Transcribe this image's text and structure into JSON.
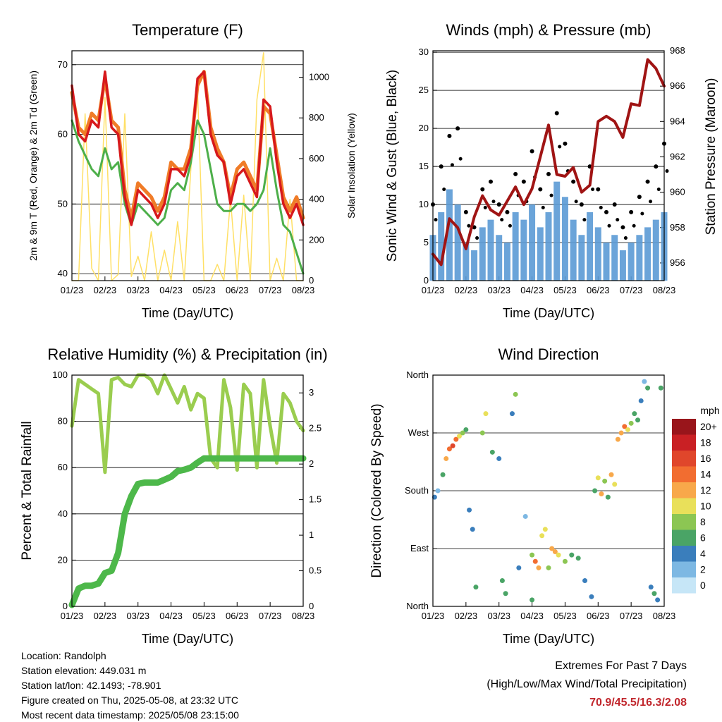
{
  "x_ticks": [
    "01/23",
    "02/23",
    "03/23",
    "04/23",
    "05/23",
    "06/23",
    "07/23",
    "08/23"
  ],
  "colors": {
    "temp2m": "#d7191c",
    "temp9m": "#f07c28",
    "dewpoint": "#4daf4a",
    "solar": "#ffe066",
    "gust": "#000000",
    "wind": "#5b9bd5",
    "pressure": "#a01414",
    "rh": "#9acd4f",
    "rain": "#4db84a"
  },
  "chart_data": [
    {
      "id": "temperature",
      "type": "line",
      "title": "Temperature (F)",
      "xlabel": "Time (Day/UTC)",
      "ylabel": "2m & 9m T (Red, Orange) & 2m Td (Green)",
      "y2label": "Solar Insolation (Yellow)",
      "ylim": [
        39,
        72
      ],
      "y2lim": [
        0,
        1130
      ],
      "yticks": [
        40,
        50,
        60,
        70
      ],
      "y2ticks": [
        0,
        200,
        400,
        600,
        800,
        1000
      ],
      "x": [
        0,
        0.2,
        0.4,
        0.6,
        0.8,
        1.0,
        1.2,
        1.4,
        1.6,
        1.8,
        2.0,
        2.2,
        2.4,
        2.6,
        2.8,
        3.0,
        3.2,
        3.4,
        3.6,
        3.8,
        4.0,
        4.2,
        4.4,
        4.6,
        4.8,
        5.0,
        5.2,
        5.4,
        5.6,
        5.8,
        6.0,
        6.2,
        6.4,
        6.6,
        6.8,
        7.0
      ],
      "series": [
        {
          "name": "2m T",
          "values": [
            67,
            60,
            59,
            62,
            61,
            69,
            61,
            60,
            51,
            47,
            52,
            51,
            50,
            48,
            50,
            55,
            55,
            54,
            57,
            68,
            69,
            60,
            57,
            56,
            50,
            54,
            55,
            53,
            51,
            65,
            64,
            56,
            50,
            48,
            50,
            47
          ]
        },
        {
          "name": "9m T",
          "values": [
            66,
            61,
            60,
            63,
            62,
            68,
            62,
            61,
            52,
            48,
            53,
            52,
            51,
            49,
            51,
            56,
            55,
            55,
            58,
            67,
            69,
            61,
            58,
            56,
            51,
            55,
            56,
            54,
            52,
            64,
            63,
            57,
            51,
            49,
            51,
            48
          ]
        },
        {
          "name": "2m Td",
          "values": [
            62,
            59,
            57,
            55,
            54,
            58,
            55,
            56,
            50,
            47,
            50,
            49,
            48,
            47,
            48,
            52,
            53,
            52,
            56,
            62,
            60,
            55,
            50,
            49,
            49,
            50,
            50,
            49,
            50,
            52,
            58,
            52,
            47,
            46,
            43,
            40
          ]
        },
        {
          "name": "Solar",
          "values": [
            0,
            0,
            820,
            60,
            0,
            900,
            0,
            30,
            820,
            20,
            120,
            0,
            240,
            0,
            150,
            0,
            290,
            0,
            550,
            940,
            0,
            0,
            80,
            0,
            400,
            0,
            420,
            0,
            890,
            1120,
            0,
            110,
            0,
            400,
            0,
            0
          ]
        }
      ]
    },
    {
      "id": "winds",
      "type": "line",
      "title": "Winds (mph) & Pressure (mb)",
      "xlabel": "Time (Day/UTC)",
      "ylabel": "Sonic Wind & Gust (Blue, Black)",
      "y2label": "Station Pressure (Maroon)",
      "ylim": [
        0,
        30.2
      ],
      "y2lim": [
        955,
        968
      ],
      "yticks": [
        0,
        5,
        10,
        15,
        20,
        25,
        30
      ],
      "y2ticks": [
        956,
        958,
        960,
        962,
        964,
        966,
        968
      ],
      "x": [
        0,
        0.25,
        0.5,
        0.75,
        1.0,
        1.25,
        1.5,
        1.75,
        2.0,
        2.25,
        2.5,
        2.75,
        3.0,
        3.25,
        3.5,
        3.75,
        4.0,
        4.25,
        4.5,
        4.75,
        5.0,
        5.25,
        5.5,
        5.75,
        6.0,
        6.25,
        6.5,
        6.75,
        7.0
      ],
      "series": [
        {
          "name": "Sonic Wind",
          "values": [
            6,
            9,
            12,
            10,
            5,
            4,
            7,
            8,
            6,
            5,
            9,
            8,
            10,
            7,
            9,
            13,
            11,
            8,
            6,
            9,
            7,
            5,
            6,
            4,
            5,
            6,
            7,
            8,
            9
          ]
        },
        {
          "name": "Gust",
          "values": [
            10,
            15,
            19,
            20,
            9,
            7,
            12,
            13,
            10,
            9,
            14,
            13,
            17,
            12,
            14,
            22,
            18,
            13,
            10,
            15,
            12,
            9,
            10,
            7,
            9,
            11,
            13,
            15,
            18
          ]
        },
        {
          "name": "Pressure",
          "values": [
            956.5,
            955.9,
            958.5,
            958.0,
            956.8,
            958.6,
            959.8,
            959.0,
            958.7,
            959.5,
            960.3,
            959.3,
            960.2,
            962.0,
            963.8,
            961.0,
            960.9,
            961.4,
            960.0,
            960.4,
            964.0,
            964.3,
            964.0,
            963.1,
            965.0,
            964.9,
            967.5,
            967.0,
            966.0
          ]
        }
      ]
    },
    {
      "id": "humidity",
      "type": "line",
      "title": "Relative Humidity (%) & Precipitation (in)",
      "xlabel": "Time (Day/UTC)",
      "ylabel": "Percent & Total Rainfall",
      "ylim": [
        0,
        100
      ],
      "y2lim": [
        0,
        3.25
      ],
      "yticks": [
        0,
        20,
        40,
        60,
        80,
        100
      ],
      "y2ticks": [
        0.0,
        0.5,
        1.0,
        1.5,
        2.0,
        2.5,
        3.0
      ],
      "x": [
        0,
        0.2,
        0.4,
        0.6,
        0.8,
        1.0,
        1.2,
        1.4,
        1.6,
        1.8,
        2.0,
        2.2,
        2.4,
        2.6,
        2.8,
        3.0,
        3.2,
        3.4,
        3.6,
        3.8,
        4.0,
        4.2,
        4.4,
        4.6,
        4.8,
        5.0,
        5.2,
        5.4,
        5.6,
        5.8,
        6.0,
        6.2,
        6.4,
        6.6,
        6.8,
        7.0
      ],
      "series": [
        {
          "name": "RH",
          "values": [
            78,
            98,
            96,
            94,
            92,
            58,
            98,
            99,
            96,
            95,
            100,
            100,
            98,
            92,
            100,
            94,
            88,
            95,
            85,
            92,
            90,
            64,
            60,
            98,
            86,
            59,
            96,
            92,
            60,
            98,
            78,
            62,
            92,
            88,
            80,
            76
          ]
        },
        {
          "name": "Rainfall",
          "values": [
            0.02,
            0.25,
            0.29,
            0.29,
            0.32,
            0.47,
            0.5,
            0.75,
            1.3,
            1.55,
            1.72,
            1.74,
            1.74,
            1.74,
            1.78,
            1.82,
            1.9,
            1.92,
            1.95,
            2.02,
            2.08,
            2.08,
            2.08,
            2.08,
            2.08,
            2.08,
            2.08,
            2.08,
            2.08,
            2.08,
            2.08,
            2.08,
            2.08,
            2.08,
            2.08,
            2.08
          ]
        }
      ]
    },
    {
      "id": "wind_direction",
      "type": "scatter",
      "title": "Wind Direction",
      "xlabel": "Time (Day/UTC)",
      "ylabel": "Direction (Colored By Speed)",
      "ylim": [
        0,
        360
      ],
      "yticks": [
        "North",
        "East",
        "South",
        "West",
        "North"
      ],
      "colorbar": {
        "title": "mph",
        "labels": [
          "20+",
          "18",
          "16",
          "14",
          "12",
          "10",
          "8",
          "6",
          "4",
          "2",
          "0"
        ],
        "colors": [
          "#99151b",
          "#c92024",
          "#e0462b",
          "#f26d30",
          "#f8a84a",
          "#e9e05a",
          "#8cc653",
          "#4aa466",
          "#3a7ebc",
          "#7db8e3",
          "#c6e6f7"
        ]
      },
      "points_x": [
        0.05,
        0.15,
        0.3,
        0.4,
        0.5,
        0.6,
        0.7,
        0.8,
        0.9,
        1.0,
        1.1,
        1.2,
        1.3,
        1.5,
        1.6,
        1.8,
        2.0,
        2.1,
        2.2,
        2.4,
        2.5,
        2.6,
        2.8,
        3.0,
        3.0,
        3.1,
        3.2,
        3.3,
        3.4,
        3.5,
        3.6,
        3.7,
        3.8,
        4.0,
        4.2,
        4.4,
        4.6,
        4.8,
        4.9,
        5.0,
        5.1,
        5.2,
        5.3,
        5.4,
        5.5,
        5.6,
        5.7,
        5.8,
        5.9,
        6.0,
        6.1,
        6.2,
        6.3,
        6.4,
        6.5,
        6.6,
        6.7,
        6.8,
        6.9
      ],
      "points_dir": [
        170,
        180,
        205,
        230,
        245,
        250,
        260,
        265,
        270,
        275,
        150,
        120,
        30,
        270,
        300,
        240,
        230,
        40,
        20,
        300,
        330,
        60,
        140,
        10,
        80,
        70,
        60,
        110,
        120,
        60,
        90,
        85,
        80,
        70,
        80,
        75,
        40,
        15,
        180,
        200,
        175,
        195,
        170,
        205,
        190,
        260,
        270,
        280,
        275,
        285,
        300,
        290,
        320,
        350,
        340,
        30,
        20,
        10,
        340
      ],
      "points_speed": [
        4,
        2,
        6,
        12,
        13,
        16,
        14,
        10,
        8,
        6,
        3,
        4,
        6,
        8,
        10,
        6,
        4,
        5,
        6,
        3,
        7,
        4,
        2,
        6,
        8,
        14,
        12,
        10,
        9,
        7,
        12,
        11,
        10,
        8,
        6,
        5,
        4,
        3,
        6,
        10,
        12,
        8,
        6,
        12,
        10,
        11,
        12,
        14,
        10,
        8,
        6,
        5,
        4,
        2,
        6,
        4,
        5,
        3,
        6
      ]
    }
  ],
  "footer": {
    "location": "Location: Randolph",
    "elevation": "Station elevation: 449.031 m",
    "latlon": "Station lat/lon: 42.1493; -78.901",
    "created": "Figure created on Thu, 2025-05-08, at 23:32 UTC",
    "recent": "Most recent data timestamp: 2025/05/08 23:15:00"
  },
  "extremes": {
    "line1": "Extremes For Past 7 Days",
    "line2": "(High/Low/Max Wind/Total Precipitation)",
    "values": "70.9/45.5/16.3/2.08"
  }
}
